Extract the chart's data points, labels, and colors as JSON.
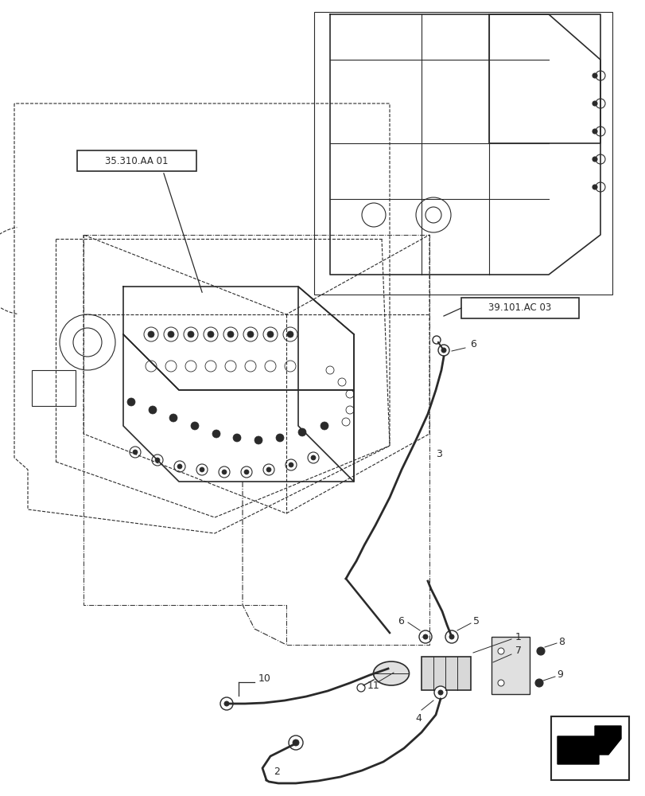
{
  "title": "",
  "background_color": "#ffffff",
  "line_color": "#2a2a2a",
  "label_box_1": "35.310.AA 01",
  "label_box_2": "39.101.AC 03",
  "part_numbers": [
    "1",
    "2",
    "3",
    "4",
    "5",
    "6",
    "7",
    "8",
    "9",
    "10",
    "11"
  ],
  "fig_width": 8.12,
  "fig_height": 10.0,
  "dpi": 100
}
